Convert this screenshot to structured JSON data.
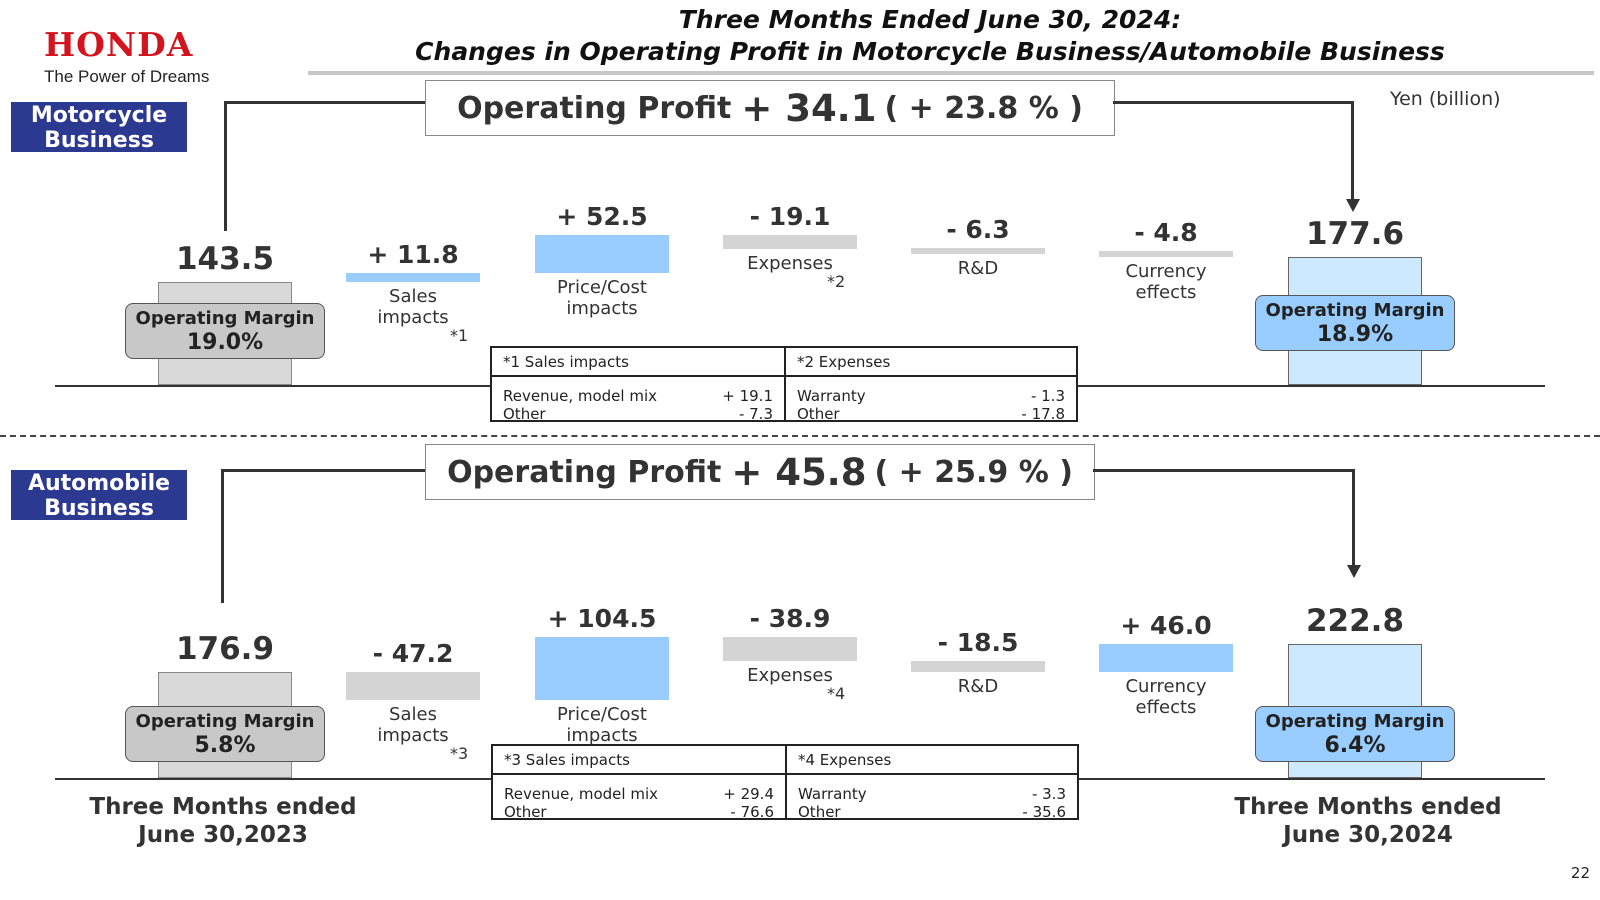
{
  "header": {
    "logo_word": "HONDA",
    "logo_tagline": "The Power of Dreams",
    "title_line1": "Three Months Ended June 30, 2024:",
    "title_line2": "Changes in Operating Profit in Motorcycle Business/Automobile Business",
    "unit": "Yen (billion)",
    "page_number": "22"
  },
  "colors": {
    "brand_red": "#d3141e",
    "section_label_bg": "#2b3990",
    "increase_bar": "#99ccff",
    "decrease_bar": "#d4d4d4",
    "start_bar": "#d9d9d9",
    "end_bar": "#cce9ff"
  },
  "periods": {
    "start": "Three Months ended\nJune 30,2023",
    "end": "Three Months ended\nJune 30,2024"
  },
  "chart_data": [
    {
      "type": "bar",
      "title": "Motorcycle Business",
      "ylabel": "Yen (billion)",
      "operating_profit_change": {
        "label": "Operating Profit",
        "value": "+ 34.1",
        "percent": "( + 23.8 % )"
      },
      "categories": [
        "Three Months ended June 30,2023",
        "Sales impacts",
        "Price/Cost impacts",
        "Expenses",
        "R&D",
        "Currency effects",
        "Three Months ended June 30,2024"
      ],
      "bars": [
        {
          "kind": "start",
          "value": 143.5,
          "label": "143.5",
          "category": "",
          "margin_label": "Operating Margin",
          "margin_value": "19.0%"
        },
        {
          "kind": "delta",
          "value": 11.8,
          "label": "+ 11.8",
          "category": "Sales\nimpacts",
          "note": "*1"
        },
        {
          "kind": "delta",
          "value": 52.5,
          "label": "+ 52.5",
          "category": "Price/Cost\nimpacts",
          "note": ""
        },
        {
          "kind": "delta",
          "value": -19.1,
          "label": "- 19.1",
          "category": "Expenses",
          "note": "*2"
        },
        {
          "kind": "delta",
          "value": -6.3,
          "label": "- 6.3",
          "category": "R&D",
          "note": ""
        },
        {
          "kind": "delta",
          "value": -4.8,
          "label": "- 4.8",
          "category": "Currency\neffects",
          "note": ""
        },
        {
          "kind": "end",
          "value": 177.6,
          "label": "177.6",
          "category": "",
          "margin_label": "Operating Margin",
          "margin_value": "18.9%"
        }
      ],
      "notes": [
        {
          "header": "*1  Sales impacts",
          "rows": [
            {
              "label": "Revenue, model mix",
              "value": "+ 19.1"
            },
            {
              "label": "Other",
              "value": "- 7.3"
            }
          ]
        },
        {
          "header": "*2 Expenses",
          "rows": [
            {
              "label": "Warranty",
              "value": "- 1.3"
            },
            {
              "label": "Other",
              "value": "- 17.8"
            }
          ]
        }
      ]
    },
    {
      "type": "bar",
      "title": "Automobile Business",
      "ylabel": "Yen (billion)",
      "operating_profit_change": {
        "label": "Operating Profit",
        "value": "+ 45.8",
        "percent": "( + 25.9 % )"
      },
      "categories": [
        "Three Months ended June 30,2023",
        "Sales impacts",
        "Price/Cost impacts",
        "Expenses",
        "R&D",
        "Currency effects",
        "Three Months ended June 30,2024"
      ],
      "bars": [
        {
          "kind": "start",
          "value": 176.9,
          "label": "176.9",
          "category": "",
          "margin_label": "Operating Margin",
          "margin_value": "5.8%"
        },
        {
          "kind": "delta",
          "value": -47.2,
          "label": "- 47.2",
          "category": "Sales\nimpacts",
          "note": "*3"
        },
        {
          "kind": "delta",
          "value": 104.5,
          "label": "+ 104.5",
          "category": "Price/Cost\nimpacts",
          "note": ""
        },
        {
          "kind": "delta",
          "value": -38.9,
          "label": "- 38.9",
          "category": "Expenses",
          "note": "*4"
        },
        {
          "kind": "delta",
          "value": -18.5,
          "label": "- 18.5",
          "category": "R&D",
          "note": ""
        },
        {
          "kind": "delta",
          "value": 46.0,
          "label": "+ 46.0",
          "category": "Currency\neffects",
          "note": ""
        },
        {
          "kind": "end",
          "value": 222.8,
          "label": "222.8",
          "category": "",
          "margin_label": "Operating Margin",
          "margin_value": "6.4%"
        }
      ],
      "notes": [
        {
          "header": "*3  Sales impacts",
          "rows": [
            {
              "label": "Revenue, model mix",
              "value": "+ 29.4"
            },
            {
              "label": "Other",
              "value": "- 76.6"
            }
          ]
        },
        {
          "header": "*4 Expenses",
          "rows": [
            {
              "label": "Warranty",
              "value": "- 3.3"
            },
            {
              "label": "Other",
              "value": "- 35.6"
            }
          ]
        }
      ]
    }
  ]
}
